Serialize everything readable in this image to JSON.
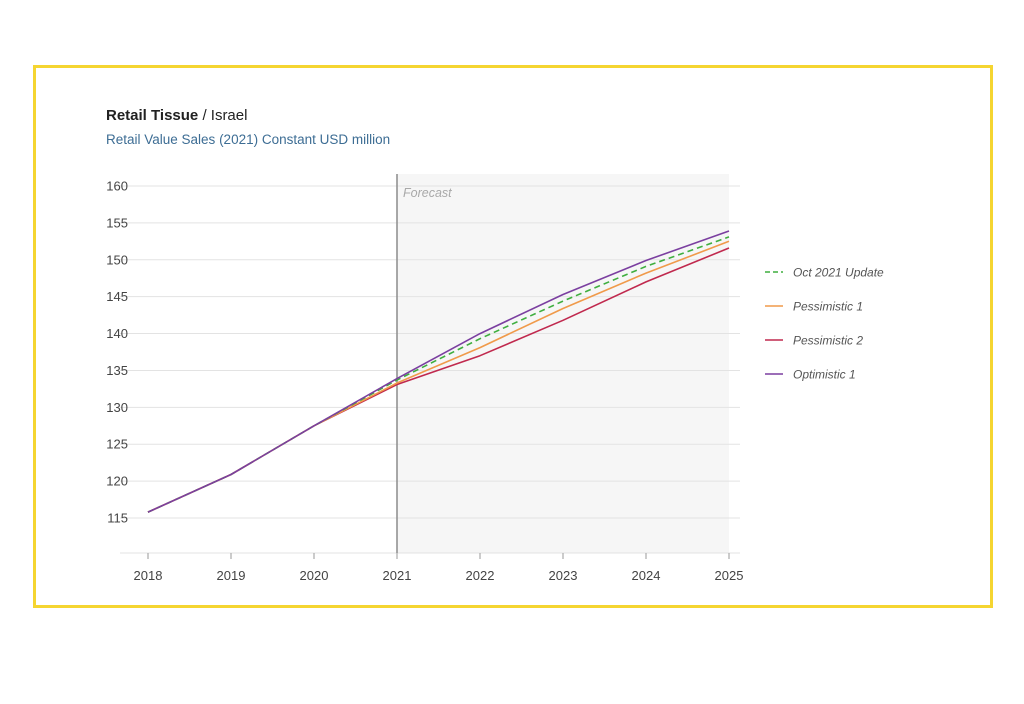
{
  "header": {
    "title_bold": "Retail Tissue",
    "title_rest": "/ Israel",
    "subtitle": "Retail Value Sales (2021) Constant USD million"
  },
  "colors": {
    "frame": "#f5d531",
    "forecast_bg": "#f6f6f6",
    "grid": "#e3e3e3"
  },
  "chart_data": {
    "type": "line",
    "forecast_label": "Forecast",
    "forecast_start": 2021,
    "x": [
      2018,
      2019,
      2020,
      2021,
      2022,
      2023,
      2024,
      2025
    ],
    "xlim": [
      2018,
      2025
    ],
    "ylim": [
      110,
      160
    ],
    "yticks": [
      115,
      120,
      125,
      130,
      135,
      140,
      145,
      150,
      155,
      160
    ],
    "grid": true,
    "legend_position": "right",
    "series": [
      {
        "name": "Oct 2021 Update",
        "color": "#3fae3f",
        "dash": true,
        "values": [
          115.8,
          120.9,
          127.5,
          133.7,
          139.3,
          144.4,
          149.1,
          153.1
        ]
      },
      {
        "name": "Pessimistic 1",
        "color": "#f09a4a",
        "dash": false,
        "values": [
          115.8,
          120.9,
          127.5,
          133.3,
          138.1,
          143.4,
          148.2,
          152.5
        ]
      },
      {
        "name": "Pessimistic 2",
        "color": "#c0294e",
        "dash": false,
        "values": [
          115.8,
          120.9,
          127.5,
          133.1,
          137.0,
          141.8,
          147.0,
          151.6
        ]
      },
      {
        "name": "Optimistic 1",
        "color": "#7b3fa0",
        "dash": false,
        "values": [
          115.8,
          120.9,
          127.5,
          133.9,
          140.0,
          145.3,
          149.9,
          153.9
        ]
      }
    ]
  }
}
